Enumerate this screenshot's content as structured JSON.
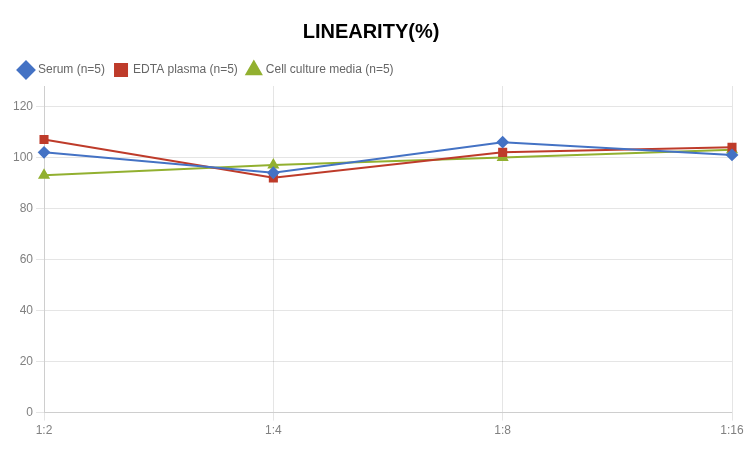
{
  "chart_data": {
    "type": "line",
    "title": "LINEARITY(%)",
    "categories": [
      "1:2",
      "1:4",
      "1:8",
      "1:16"
    ],
    "series": [
      {
        "name": "Serum (n=5)",
        "color": "#4472C4",
        "marker": "diamond",
        "values": [
          102,
          94,
          106,
          101
        ]
      },
      {
        "name": "EDTA plasma (n=5)",
        "color": "#BE3B2A",
        "marker": "square",
        "values": [
          107,
          92,
          102,
          104
        ]
      },
      {
        "name": "Cell culture media (n=5)",
        "color": "#92B030",
        "marker": "triangle",
        "values": [
          93,
          97,
          100,
          103
        ]
      }
    ],
    "ylim": [
      0,
      128
    ],
    "yticks": [
      0,
      20,
      40,
      60,
      80,
      100,
      120
    ],
    "grid": true,
    "legend": "top"
  }
}
